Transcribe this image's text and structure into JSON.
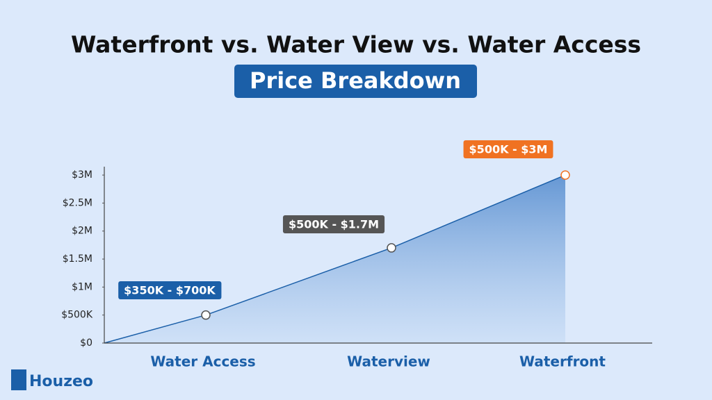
{
  "chart_data": {
    "type": "area",
    "title": "Waterfront vs. Water View vs. Water Access",
    "subtitle": "Price Breakdown",
    "categories": [
      null,
      "Water Access",
      "Waterview",
      "Waterfront"
    ],
    "values": [
      0,
      500000,
      1700000,
      3000000
    ],
    "color": "#1b5fa8",
    "ylim": [
      0,
      3150000
    ],
    "yticks": [
      {
        "value": 0,
        "label": "$0"
      },
      {
        "value": 500000,
        "label": "$500K"
      },
      {
        "value": 1000000,
        "label": "$1M"
      },
      {
        "value": 1500000,
        "label": "$1.5M"
      },
      {
        "value": 2000000,
        "label": "$2M"
      },
      {
        "value": 2500000,
        "label": "$2.5M"
      },
      {
        "value": 3000000,
        "label": "$3M"
      }
    ],
    "annotations": [
      {
        "text": "$350K - $700K",
        "color": "#1b5fa8"
      },
      {
        "text": "$500K - $1.7M",
        "color": "#555555"
      },
      {
        "text": "$500K - $3M",
        "color": "#f07222"
      }
    ],
    "logo": "Houzeo"
  }
}
